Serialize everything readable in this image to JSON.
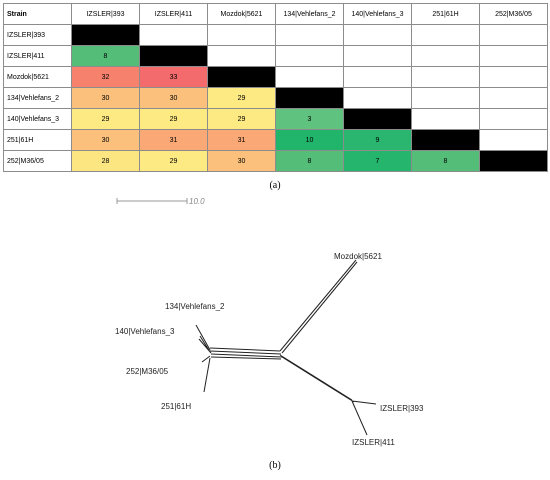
{
  "matrix": {
    "corner": "Strain",
    "strains": [
      "IZSLER|393",
      "IZSLER|411",
      "Mozdok|5621",
      "134|Vehlefans_2",
      "140|Vehlefans_3",
      "251|61H",
      "252|M36/05"
    ],
    "rows": [
      [
        null,
        null,
        null,
        null,
        null,
        null,
        null
      ],
      [
        "8",
        null,
        null,
        null,
        null,
        null,
        null
      ],
      [
        "32",
        "33",
        null,
        null,
        null,
        null,
        null
      ],
      [
        "30",
        "30",
        "29",
        null,
        null,
        null,
        null
      ],
      [
        "29",
        "29",
        "29",
        "3",
        null,
        null,
        null
      ],
      [
        "30",
        "31",
        "31",
        "10",
        "9",
        null,
        null
      ],
      [
        "28",
        "29",
        "30",
        "8",
        "7",
        "8",
        null
      ]
    ],
    "colors": {
      "8": "#54bd77",
      "32": "#f6826d",
      "33": "#f46b6d",
      "30": "#fbc07c",
      "29": "#fdea83",
      "31": "#faa876",
      "3": "#5fc27e",
      "10": "#21b56b",
      "9": "#2ab66e",
      "28": "#fce682",
      "7": "#25b56c",
      "diagonal": "#000000",
      "empty": "#ffffff"
    }
  },
  "caption_a": "(a)",
  "caption_b": "(b)",
  "tree": {
    "scale_label": "10.0",
    "leaves": {
      "mozdok": "Mozdok|5621",
      "v2": "134|Vehlefans_2",
      "v3": "140|Vehlefans_3",
      "m36": "252|M36/05",
      "h61": "251|61H",
      "iz393": "IZSLER|393",
      "iz411": "IZSLER|411"
    }
  }
}
